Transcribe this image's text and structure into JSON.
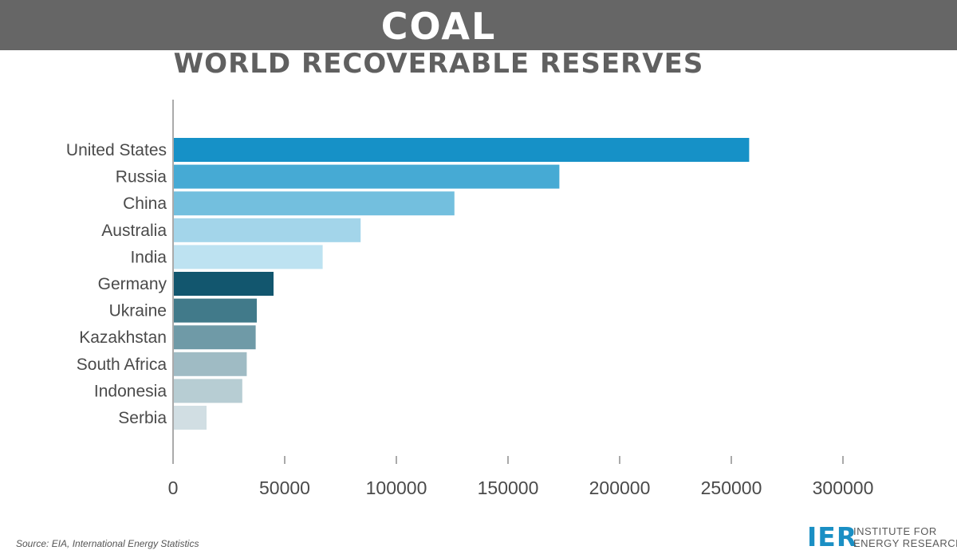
{
  "header": {
    "title": "COAL",
    "subtitle": "WORLD RECOVERABLE RESERVES"
  },
  "chart_data": {
    "type": "bar",
    "orientation": "horizontal",
    "title": "COAL",
    "subtitle": "WORLD RECOVERABLE RESERVES",
    "categories": [
      "United States",
      "Russia",
      "China",
      "Australia",
      "India",
      "Germany",
      "Ukraine",
      "Kazakhstan",
      "South Africa",
      "Indonesia",
      "Serbia"
    ],
    "values": [
      258000,
      173000,
      126000,
      84000,
      67000,
      45000,
      37500,
      37000,
      33000,
      31000,
      15000
    ],
    "bar_colors": [
      "#1691c7",
      "#46aad4",
      "#73bfde",
      "#a3d5ea",
      "#bde2f1",
      "#12566e",
      "#417a8a",
      "#6f9aa7",
      "#9fbbc4",
      "#b7cdd3",
      "#d1dee3"
    ],
    "xticks": [
      "0",
      "50000",
      "100000",
      "150000",
      "200000",
      "250000",
      "300000"
    ],
    "xlim": [
      0,
      300000
    ],
    "xlabel": "",
    "ylabel": "",
    "grid": false,
    "legend": "none"
  },
  "footer": {
    "source": "Source: EIA, International Energy Statistics",
    "logo_mark": "IER",
    "logo_line1": "INSTITUTE FOR",
    "logo_line2": "ENERGY RESEARCH"
  }
}
